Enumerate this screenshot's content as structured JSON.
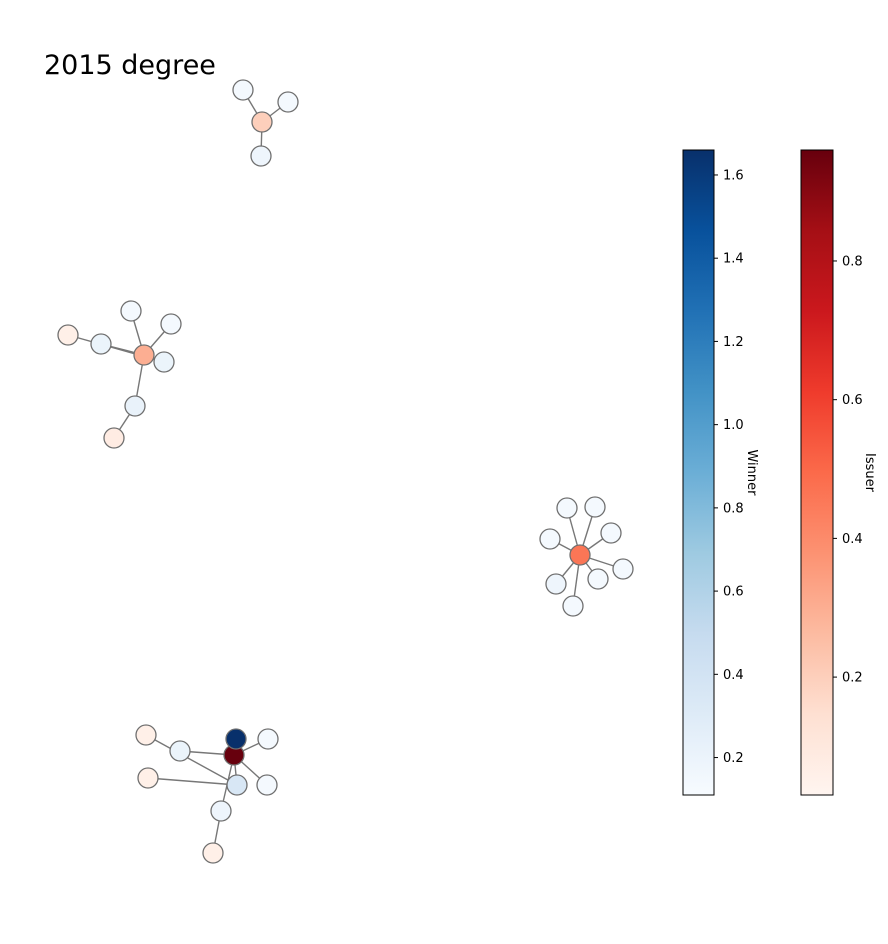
{
  "title": "2015 degree",
  "colors": {
    "edge": "#777777",
    "node_stroke": "#707070",
    "winner_cmap": [
      "#f7fbff",
      "#deebf7",
      "#c6dbef",
      "#9ecae1",
      "#6baed6",
      "#4292c6",
      "#2171b5",
      "#08519c",
      "#08306b"
    ],
    "issuer_cmap": [
      "#fff5f0",
      "#fee0d2",
      "#fcbba1",
      "#fc9272",
      "#fb6a4a",
      "#ef3b2c",
      "#cb181d",
      "#a50f15",
      "#67000d"
    ]
  },
  "colorbars": [
    {
      "name": "winner",
      "label": "Winner",
      "range": [
        0.11,
        1.66
      ],
      "ticks": [
        {
          "value": 0.2,
          "label": "0.2"
        },
        {
          "value": 0.4,
          "label": "0.4"
        },
        {
          "value": 0.6,
          "label": "0.6"
        },
        {
          "value": 0.8,
          "label": "0.8"
        },
        {
          "value": 1.0,
          "label": "1.0"
        },
        {
          "value": 1.2,
          "label": "1.2"
        },
        {
          "value": 1.4,
          "label": "1.4"
        },
        {
          "value": 1.6,
          "label": "1.6"
        }
      ]
    },
    {
      "name": "issuer",
      "label": "Issuer",
      "range": [
        0.03,
        0.96
      ],
      "ticks": [
        {
          "value": 0.2,
          "label": "0.2"
        },
        {
          "value": 0.4,
          "label": "0.4"
        },
        {
          "value": 0.6,
          "label": "0.6"
        },
        {
          "value": 0.8,
          "label": "0.8"
        }
      ]
    }
  ],
  "graph": {
    "nodes": [
      {
        "id": "a1",
        "type": "issuer",
        "value": 0.2
      },
      {
        "id": "a2",
        "type": "winner",
        "value": 0.13
      },
      {
        "id": "a3",
        "type": "winner",
        "value": 0.13
      },
      {
        "id": "a4",
        "type": "winner",
        "value": 0.18
      },
      {
        "id": "b1",
        "type": "issuer",
        "value": 0.3
      },
      {
        "id": "b2",
        "type": "winner",
        "value": 0.13
      },
      {
        "id": "b3",
        "type": "winner",
        "value": 0.13
      },
      {
        "id": "b4",
        "type": "winner",
        "value": 0.2
      },
      {
        "id": "b5",
        "type": "winner",
        "value": 0.22
      },
      {
        "id": "b6",
        "type": "issuer",
        "value": 0.08
      },
      {
        "id": "b7",
        "type": "winner",
        "value": 0.2
      },
      {
        "id": "b8",
        "type": "issuer",
        "value": 0.06
      },
      {
        "id": "c1",
        "type": "issuer",
        "value": 0.46
      },
      {
        "id": "c2",
        "type": "winner",
        "value": 0.13
      },
      {
        "id": "c3",
        "type": "winner",
        "value": 0.13
      },
      {
        "id": "c4",
        "type": "winner",
        "value": 0.13
      },
      {
        "id": "c5",
        "type": "winner",
        "value": 0.13
      },
      {
        "id": "c6",
        "type": "winner",
        "value": 0.13
      },
      {
        "id": "c7",
        "type": "winner",
        "value": 0.13
      },
      {
        "id": "c8",
        "type": "winner",
        "value": 0.18
      },
      {
        "id": "c9",
        "type": "winner",
        "value": 0.13
      },
      {
        "id": "d1",
        "type": "issuer",
        "value": 0.96
      },
      {
        "id": "d2",
        "type": "winner",
        "value": 1.66
      },
      {
        "id": "d3",
        "type": "winner",
        "value": 0.13
      },
      {
        "id": "d4",
        "type": "winner",
        "value": 0.2
      },
      {
        "id": "d5",
        "type": "winner",
        "value": 0.13
      },
      {
        "id": "d6",
        "type": "winner",
        "value": 0.18
      },
      {
        "id": "d7",
        "type": "issuer",
        "value": 0.06
      },
      {
        "id": "d8",
        "type": "winner",
        "value": 0.35
      },
      {
        "id": "d9",
        "type": "issuer",
        "value": 0.06
      },
      {
        "id": "d10",
        "type": "issuer",
        "value": 0.06
      }
    ],
    "edges": [
      [
        "a1",
        "a2"
      ],
      [
        "a1",
        "a3"
      ],
      [
        "a1",
        "a4"
      ],
      [
        "b1",
        "b2"
      ],
      [
        "b1",
        "b3"
      ],
      [
        "b1",
        "b4"
      ],
      [
        "b1",
        "b5"
      ],
      [
        "b5",
        "b6"
      ],
      [
        "b1",
        "b7"
      ],
      [
        "b7",
        "b8"
      ],
      [
        "c1",
        "c2"
      ],
      [
        "c1",
        "c3"
      ],
      [
        "c1",
        "c4"
      ],
      [
        "c1",
        "c5"
      ],
      [
        "c1",
        "c6"
      ],
      [
        "c1",
        "c7"
      ],
      [
        "c1",
        "c8"
      ],
      [
        "c1",
        "c9"
      ],
      [
        "d1",
        "d2"
      ],
      [
        "d1",
        "d3"
      ],
      [
        "d1",
        "d4"
      ],
      [
        "d1",
        "d5"
      ],
      [
        "d1",
        "d6"
      ],
      [
        "d6",
        "d7"
      ],
      [
        "d1",
        "d8"
      ],
      [
        "d8",
        "d9"
      ],
      [
        "d8",
        "d10"
      ]
    ]
  }
}
